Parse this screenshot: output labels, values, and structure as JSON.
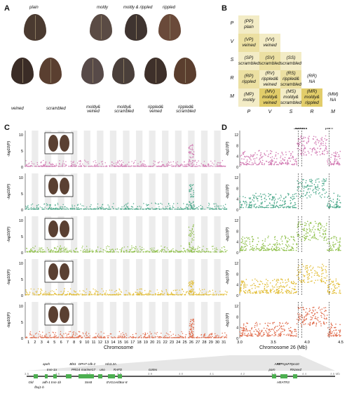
{
  "panelA": {
    "letter": "A",
    "labels": {
      "plain": "plain",
      "moldy": "moldy",
      "moldy_rippled": "moldy & rippled",
      "rippled": "rippled",
      "veined": "veined",
      "scrambled": "scrambled",
      "moldy_veined": "moldy& veined",
      "moldy_scrambled": "moldy& scrambled",
      "rippled_veined": "rippled& veined",
      "rippled_scrambled": "rippled& scrambled"
    }
  },
  "panelB": {
    "letter": "B",
    "row_labels": [
      "P",
      "V",
      "S",
      "R",
      "M"
    ],
    "col_labels": [
      "P",
      "V",
      "S",
      "R",
      "M"
    ],
    "rows": [
      [
        {
          "g": "(PP)",
          "p": "plain",
          "c": "#f3ecc6"
        }
      ],
      [
        {
          "g": "(VP)",
          "p": "veined",
          "c": "#ece0a2"
        },
        {
          "g": "(VV)",
          "p": "veined",
          "c": "#f3ecc6"
        }
      ],
      [
        {
          "g": "(SP)",
          "p": "scrambled",
          "c": "#f3ecc6"
        },
        {
          "g": "(SV)",
          "p": "scrambled",
          "c": "#ece0a2"
        },
        {
          "g": "(SS)",
          "p": "scrambled",
          "c": "#f3ecc6"
        }
      ],
      [
        {
          "g": "(RP)",
          "p": "rippled",
          "c": "#ece0a2"
        },
        {
          "g": "(RV)",
          "p": "rippled& veined",
          "c": "#f3ecc6"
        },
        {
          "g": "(RS)",
          "p": "rippled& scrambled",
          "c": "#ece0a2"
        },
        {
          "g": "(RR)",
          "p": "NA",
          "c": "#ffffff"
        }
      ],
      [
        {
          "g": "(MP)",
          "p": "moldy",
          "c": "#f3ecc6"
        },
        {
          "g": "(MV)",
          "p": "moldy& veined",
          "c": "#e2cd6a"
        },
        {
          "g": "(MS)",
          "p": "moldy& scrambled",
          "c": "#f3ecc6"
        },
        {
          "g": "(MR)",
          "p": "moldy& rippled",
          "c": "#e2cd6a"
        },
        {
          "g": "(MM)",
          "p": "NA",
          "c": "#ffffff"
        }
      ]
    ]
  },
  "panelC": {
    "letter": "C",
    "ylabel": "-log10(P)",
    "xlabel": "Chromosome",
    "yticks": [
      "0",
      "5",
      "10"
    ],
    "chrom_labels": [
      "1",
      "2",
      "3",
      "4",
      "5",
      "6",
      "7",
      "8",
      "9",
      "10",
      "11",
      "12",
      "13",
      "14",
      "15",
      "16",
      "17",
      "18",
      "19",
      "20",
      "21",
      "22",
      "23",
      "24",
      "25",
      "26",
      "27",
      "28",
      "29",
      "30",
      "31"
    ],
    "tracks": [
      {
        "color": "#d27ab3",
        "peak": 8
      },
      {
        "color": "#4aa88a",
        "peak": 9
      },
      {
        "color": "#8fc04a",
        "peak": 10
      },
      {
        "color": "#e2bd35",
        "peak": 5
      },
      {
        "color": "#e06a4a",
        "peak": 7
      }
    ]
  },
  "panelD": {
    "letter": "D",
    "ylabel": "-log10(P)",
    "xlabel": "Chromosome 26 (Mb)",
    "xticks": [
      "3.0",
      "3.5",
      "4.0",
      "4.5"
    ],
    "marker_labels": [
      "Sur-8",
      "cortex",
      "parn"
    ],
    "track_yticks": [
      [
        "0",
        "4",
        "8",
        "12"
      ],
      [
        "0",
        "4",
        "8",
        "12"
      ],
      [
        "0",
        "4",
        "8",
        "12"
      ],
      [
        "0",
        "4",
        "8",
        "12"
      ],
      [
        "0",
        "4",
        "8",
        "12"
      ]
    ]
  },
  "genes": {
    "scale_left": [
      "3.5",
      "3.6",
      "3.7",
      "3.8",
      "3.9",
      "4.0",
      "4.1",
      "4.2",
      "4.3",
      "4.4",
      "4.5 Mb"
    ],
    "top_names": [
      "apeh",
      "Bbt1",
      "DPH7 cdk-2",
      "His3.3A",
      "ATPsynF",
      "ARF",
      "Rpn10"
    ],
    "top_names_2": [
      "trxn-1a",
      "PRG4",
      "mariner17",
      "uno",
      "RAFD",
      "cortex",
      "parn",
      "RNaseZ"
    ],
    "bottom_names": [
      "Gld",
      "adh-1",
      "trxn-1b",
      "Sns8",
      "EVG1",
      "ech",
      "Sur-8",
      "HEATR3"
    ],
    "bottom_names_2": [
      "fbxj1-b"
    ]
  }
}
